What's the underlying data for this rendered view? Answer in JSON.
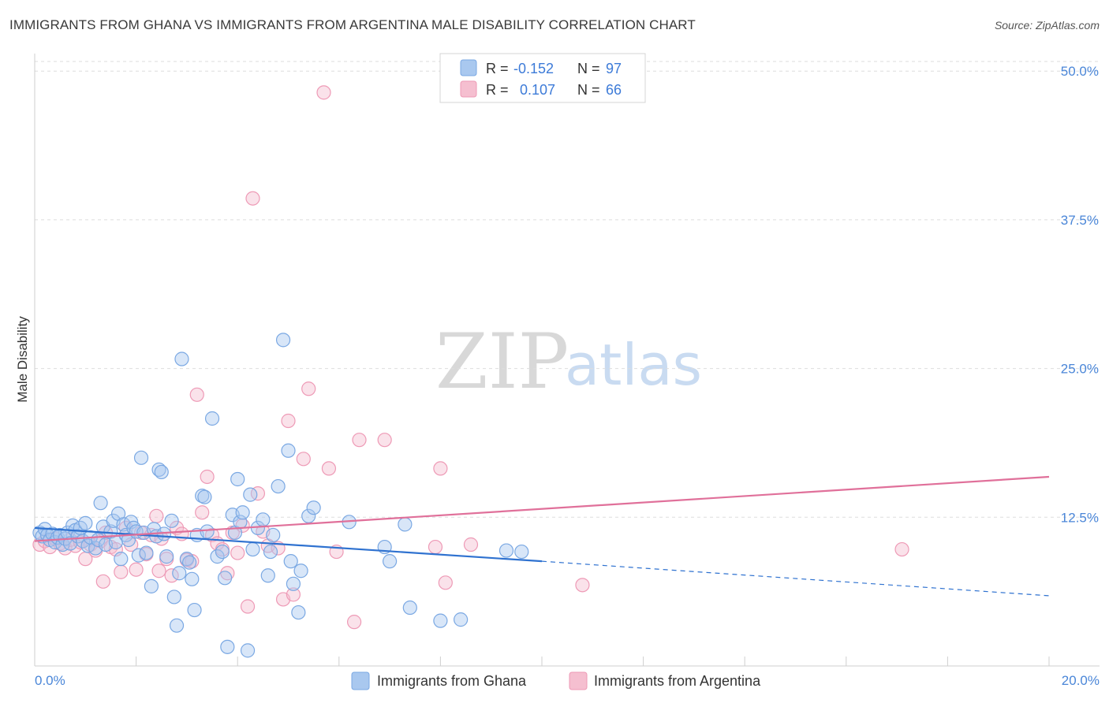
{
  "header": {
    "title": "IMMIGRANTS FROM GHANA VS IMMIGRANTS FROM ARGENTINA MALE DISABILITY CORRELATION CHART",
    "source": "Source: ZipAtlas.com"
  },
  "watermark": {
    "zip": "ZIP",
    "atlas": "atlas"
  },
  "stats": {
    "ghana": {
      "r_label": "R =",
      "r_value": "-0.152",
      "n_label": "N =",
      "n_value": "97"
    },
    "argentina": {
      "r_label": "R =",
      "r_value": "0.107",
      "n_label": "N =",
      "n_value": "66"
    }
  },
  "colors": {
    "ghana_fill": "#a9c8ef",
    "ghana_stroke": "#7aa8e3",
    "ghana_line": "#2f72d0",
    "argentina_fill": "#f5bfd0",
    "argentina_stroke": "#ee9ab6",
    "argentina_line": "#e0709a",
    "grid": "#dddddd",
    "tick_text": "#4a86d8"
  },
  "chart_data": {
    "type": "scatter",
    "title": "IMMIGRANTS FROM GHANA VS IMMIGRANTS FROM ARGENTINA MALE DISABILITY CORRELATION CHART",
    "xlabel": "",
    "ylabel": "Male Disability",
    "xlim": [
      0,
      20
    ],
    "ylim": [
      0,
      52
    ],
    "x_tick_labels": [
      "0.0%",
      "20.0%"
    ],
    "y_ticks": [
      12.5,
      25.0,
      37.5,
      50.0
    ],
    "y_tick_labels": [
      "12.5%",
      "25.0%",
      "37.5%",
      "50.0%"
    ],
    "grid": true,
    "legend_position": "bottom",
    "series": [
      {
        "name": "Immigrants from Ghana",
        "r": -0.152,
        "n": 97,
        "trend": {
          "x0": 0,
          "y0": 11.6,
          "x1": 10,
          "y1": 8.8,
          "dash_x1": 20,
          "dash_y1": 5.9
        },
        "points": [
          [
            0.1,
            11.2
          ],
          [
            0.15,
            10.9
          ],
          [
            0.2,
            11.5
          ],
          [
            0.25,
            11.0
          ],
          [
            0.3,
            10.6
          ],
          [
            0.35,
            11.1
          ],
          [
            0.4,
            10.4
          ],
          [
            0.45,
            10.8
          ],
          [
            0.5,
            11.0
          ],
          [
            0.55,
            10.2
          ],
          [
            0.6,
            10.7
          ],
          [
            0.65,
            11.2
          ],
          [
            0.7,
            10.3
          ],
          [
            0.75,
            11.8
          ],
          [
            0.8,
            11.4
          ],
          [
            0.85,
            10.9
          ],
          [
            0.9,
            11.6
          ],
          [
            0.95,
            10.5
          ],
          [
            1.0,
            12.0
          ],
          [
            1.05,
            10.1
          ],
          [
            1.1,
            10.8
          ],
          [
            1.2,
            9.9
          ],
          [
            1.25,
            10.6
          ],
          [
            1.3,
            13.7
          ],
          [
            1.35,
            11.7
          ],
          [
            1.4,
            10.2
          ],
          [
            1.5,
            11.3
          ],
          [
            1.55,
            12.2
          ],
          [
            1.6,
            10.4
          ],
          [
            1.65,
            12.8
          ],
          [
            1.7,
            9.0
          ],
          [
            1.75,
            11.9
          ],
          [
            1.8,
            11.0
          ],
          [
            1.85,
            10.6
          ],
          [
            1.9,
            12.1
          ],
          [
            1.95,
            11.6
          ],
          [
            2.0,
            11.3
          ],
          [
            2.05,
            9.3
          ],
          [
            2.1,
            17.5
          ],
          [
            2.15,
            11.2
          ],
          [
            2.2,
            9.5
          ],
          [
            2.3,
            6.7
          ],
          [
            2.35,
            11.5
          ],
          [
            2.4,
            10.9
          ],
          [
            2.45,
            16.5
          ],
          [
            2.5,
            16.3
          ],
          [
            2.55,
            11.1
          ],
          [
            2.6,
            9.2
          ],
          [
            2.7,
            12.2
          ],
          [
            2.75,
            5.8
          ],
          [
            2.8,
            3.4
          ],
          [
            2.85,
            7.8
          ],
          [
            2.9,
            25.8
          ],
          [
            3.0,
            9.0
          ],
          [
            3.05,
            8.7
          ],
          [
            3.1,
            7.3
          ],
          [
            3.15,
            4.7
          ],
          [
            3.2,
            11.0
          ],
          [
            3.3,
            14.3
          ],
          [
            3.35,
            14.2
          ],
          [
            3.4,
            11.3
          ],
          [
            3.5,
            20.8
          ],
          [
            3.6,
            9.2
          ],
          [
            3.7,
            9.6
          ],
          [
            3.75,
            7.4
          ],
          [
            3.8,
            1.6
          ],
          [
            3.9,
            12.7
          ],
          [
            3.95,
            11.2
          ],
          [
            4.0,
            15.7
          ],
          [
            4.05,
            12.1
          ],
          [
            4.1,
            12.9
          ],
          [
            4.2,
            1.3
          ],
          [
            4.25,
            14.4
          ],
          [
            4.3,
            9.8
          ],
          [
            4.4,
            11.6
          ],
          [
            4.5,
            12.3
          ],
          [
            4.6,
            7.6
          ],
          [
            4.65,
            9.6
          ],
          [
            4.7,
            11.0
          ],
          [
            4.8,
            15.1
          ],
          [
            4.9,
            27.4
          ],
          [
            5.0,
            18.1
          ],
          [
            5.05,
            8.8
          ],
          [
            5.1,
            6.9
          ],
          [
            5.2,
            4.5
          ],
          [
            5.25,
            8.0
          ],
          [
            5.4,
            12.6
          ],
          [
            5.5,
            13.3
          ],
          [
            6.2,
            12.1
          ],
          [
            6.9,
            10.0
          ],
          [
            7.0,
            8.8
          ],
          [
            7.3,
            11.9
          ],
          [
            7.4,
            4.9
          ],
          [
            8.0,
            3.8
          ],
          [
            8.4,
            3.9
          ],
          [
            9.3,
            9.7
          ],
          [
            9.6,
            9.6
          ]
        ]
      },
      {
        "name": "Immigrants from Argentina",
        "r": 0.107,
        "n": 66,
        "trend": {
          "x0": 0,
          "y0": 10.5,
          "x1": 20,
          "y1": 15.9
        },
        "points": [
          [
            0.1,
            10.2
          ],
          [
            0.2,
            10.5
          ],
          [
            0.3,
            10.0
          ],
          [
            0.4,
            10.7
          ],
          [
            0.5,
            10.3
          ],
          [
            0.6,
            9.9
          ],
          [
            0.7,
            10.6
          ],
          [
            0.8,
            10.1
          ],
          [
            0.9,
            10.4
          ],
          [
            1.0,
            9.0
          ],
          [
            1.1,
            10.2
          ],
          [
            1.2,
            9.7
          ],
          [
            1.3,
            10.5
          ],
          [
            1.35,
            7.1
          ],
          [
            1.4,
            11.2
          ],
          [
            1.5,
            10.0
          ],
          [
            1.6,
            9.8
          ],
          [
            1.7,
            7.9
          ],
          [
            1.8,
            11.6
          ],
          [
            1.9,
            10.2
          ],
          [
            2.0,
            8.1
          ],
          [
            2.1,
            11.2
          ],
          [
            2.2,
            9.4
          ],
          [
            2.3,
            11.0
          ],
          [
            2.4,
            12.6
          ],
          [
            2.45,
            8.0
          ],
          [
            2.5,
            10.7
          ],
          [
            2.6,
            9.0
          ],
          [
            2.7,
            7.6
          ],
          [
            2.8,
            11.6
          ],
          [
            2.9,
            11.1
          ],
          [
            3.0,
            8.9
          ],
          [
            3.1,
            8.8
          ],
          [
            3.2,
            22.8
          ],
          [
            3.3,
            12.9
          ],
          [
            3.4,
            15.9
          ],
          [
            3.5,
            11.0
          ],
          [
            3.6,
            10.3
          ],
          [
            3.7,
            9.8
          ],
          [
            3.8,
            7.8
          ],
          [
            3.9,
            11.2
          ],
          [
            4.0,
            9.5
          ],
          [
            4.1,
            11.8
          ],
          [
            4.2,
            5.0
          ],
          [
            4.3,
            39.3
          ],
          [
            4.4,
            14.5
          ],
          [
            4.5,
            11.3
          ],
          [
            4.6,
            10.1
          ],
          [
            4.8,
            9.9
          ],
          [
            4.9,
            5.6
          ],
          [
            5.0,
            20.6
          ],
          [
            5.1,
            6.0
          ],
          [
            5.3,
            17.4
          ],
          [
            5.4,
            23.3
          ],
          [
            5.7,
            48.2
          ],
          [
            5.8,
            16.6
          ],
          [
            5.95,
            9.6
          ],
          [
            6.3,
            3.7
          ],
          [
            6.4,
            19.0
          ],
          [
            6.9,
            19.0
          ],
          [
            7.9,
            10.0
          ],
          [
            8.0,
            16.6
          ],
          [
            8.1,
            7.0
          ],
          [
            8.6,
            10.2
          ],
          [
            10.8,
            6.8
          ],
          [
            17.1,
            9.8
          ]
        ]
      }
    ]
  },
  "legend": {
    "items": [
      {
        "label": "Immigrants from Ghana"
      },
      {
        "label": "Immigrants from Argentina"
      }
    ]
  }
}
